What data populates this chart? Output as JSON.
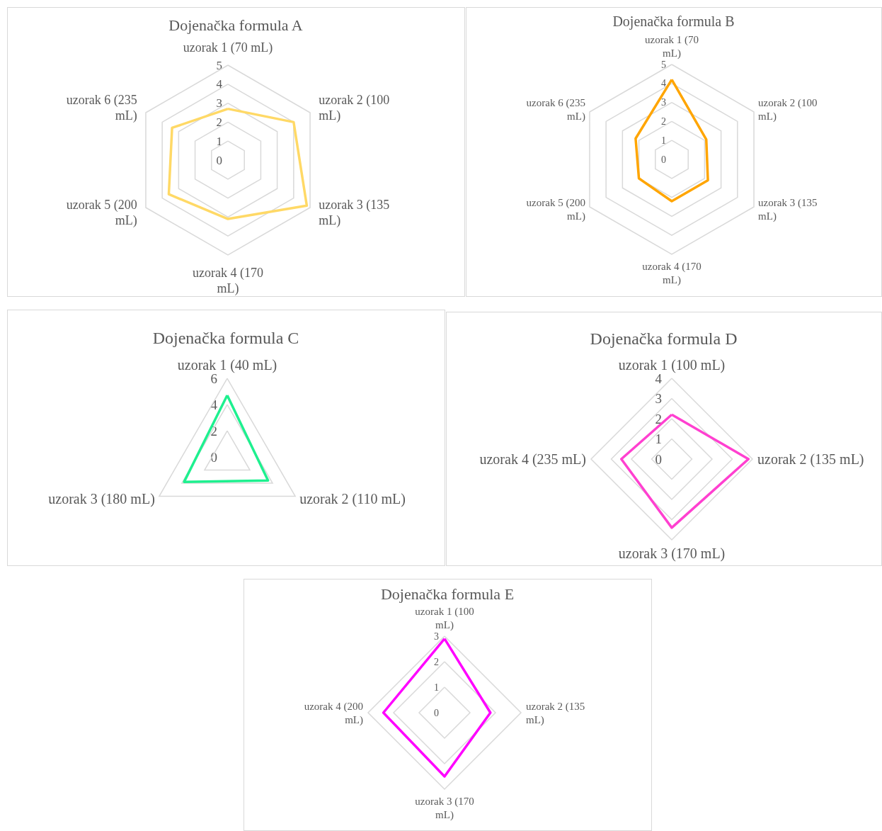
{
  "chart_data": [
    {
      "type": "radar",
      "title": "Dojenačka formula A",
      "categories": [
        "uzorak 1 (70 mL)",
        "uzorak 2 (100 mL)",
        "uzorak 3 (135 mL)",
        "uzorak 4 (170 mL)",
        "uzorak 5 (200 mL)",
        "uzorak 6 (235 mL)"
      ],
      "series": [
        {
          "color": "#ffd966",
          "values": [
            2.7,
            4.0,
            4.8,
            3.1,
            3.6,
            3.4
          ]
        }
      ],
      "ylim": [
        0,
        5
      ],
      "yticks": [
        0,
        1,
        2,
        3,
        4,
        5
      ],
      "grid": true,
      "marker": "none",
      "line_style": "solid"
    },
    {
      "type": "radar",
      "title": "Dojenačka formula B",
      "categories": [
        "uzorak 1 (70 mL)",
        "uzorak 2 (100 mL)",
        "uzorak 3 (135 mL)",
        "uzorak 4 (170 mL)",
        "uzorak 5 (200 mL)",
        "uzorak 6 (235 mL)"
      ],
      "series": [
        {
          "color": "#ffa500",
          "values": [
            4.2,
            2.1,
            2.2,
            2.2,
            2.0,
            2.2
          ]
        }
      ],
      "ylim": [
        0,
        5
      ],
      "yticks": [
        0,
        1,
        2,
        3,
        4,
        5
      ],
      "grid": true,
      "marker": "none",
      "line_style": "solid"
    },
    {
      "type": "radar",
      "title": "Dojenačka formula C",
      "categories": [
        "uzorak 1 (40 mL)",
        "uzorak 2 (110 mL)",
        "uzorak 3 (180 mL)"
      ],
      "series": [
        {
          "color": "#1ef08f",
          "values": [
            4.7,
            3.6,
            3.8
          ]
        }
      ],
      "ylim": [
        0,
        6
      ],
      "yticks": [
        0,
        2,
        4,
        6
      ],
      "grid": true,
      "marker": "none",
      "line_style": "solid"
    },
    {
      "type": "radar",
      "title": "Dojenačka formula D",
      "categories": [
        "uzorak 1 (100 mL)",
        "uzorak 2 (135 mL)",
        "uzorak 3 (170 mL)",
        "uzorak 4 (235 mL)"
      ],
      "series": [
        {
          "color": "#ff40d0",
          "values": [
            2.2,
            3.8,
            3.4,
            2.5
          ]
        }
      ],
      "ylim": [
        0,
        4
      ],
      "yticks": [
        0,
        1,
        2,
        3,
        4
      ],
      "grid": true,
      "marker": "none",
      "line_style": "solid"
    },
    {
      "type": "radar",
      "title": "Dojenačka formula E",
      "categories": [
        "uzorak 1 (100 mL)",
        "uzorak 2 (135 mL)",
        "uzorak 3 (170 mL)",
        "uzorak 4 (200 mL)"
      ],
      "series": [
        {
          "color": "#ff00ff",
          "values": [
            2.9,
            1.8,
            2.5,
            2.4
          ]
        }
      ],
      "ylim": [
        0,
        3
      ],
      "yticks": [
        0,
        1,
        2,
        3
      ],
      "grid": true,
      "marker": "none",
      "line_style": "solid"
    }
  ]
}
